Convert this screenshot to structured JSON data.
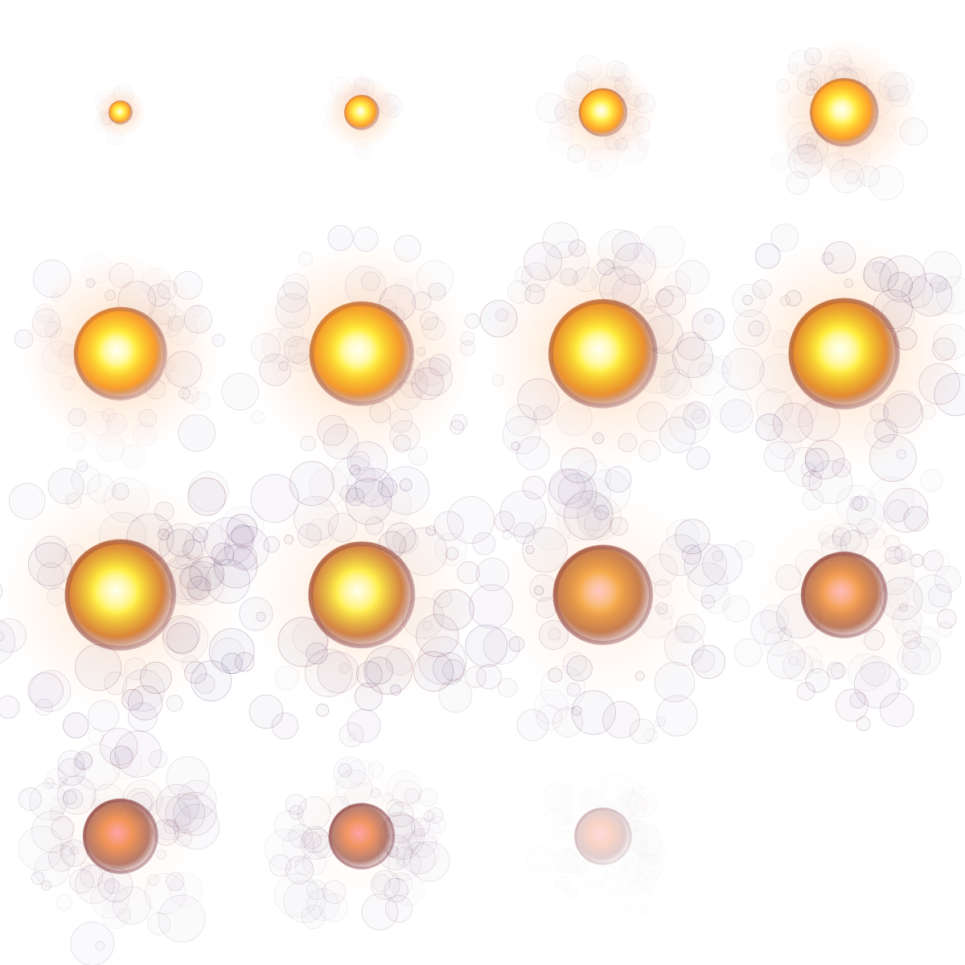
{
  "sprite_sheet": {
    "background_color": "#ffffff",
    "columns": 4,
    "rows": 4,
    "frames": [
      {
        "index": 1,
        "fire": 0.1,
        "heat": 1.0,
        "smoke": 0.05,
        "fade": 1.0
      },
      {
        "index": 2,
        "fire": 0.2,
        "heat": 1.0,
        "smoke": 0.2,
        "fade": 1.0
      },
      {
        "index": 3,
        "fire": 0.32,
        "heat": 1.0,
        "smoke": 0.35,
        "fade": 1.0
      },
      {
        "index": 4,
        "fire": 0.5,
        "heat": 1.0,
        "smoke": 0.5,
        "fade": 1.0
      },
      {
        "index": 5,
        "fire": 0.72,
        "heat": 0.95,
        "smoke": 0.6,
        "fade": 1.0
      },
      {
        "index": 6,
        "fire": 0.82,
        "heat": 0.92,
        "smoke": 0.7,
        "fade": 1.0
      },
      {
        "index": 7,
        "fire": 0.86,
        "heat": 0.85,
        "smoke": 0.8,
        "fade": 1.0
      },
      {
        "index": 8,
        "fire": 0.88,
        "heat": 0.8,
        "smoke": 0.9,
        "fade": 1.0
      },
      {
        "index": 9,
        "fire": 0.88,
        "heat": 0.7,
        "smoke": 1.0,
        "fade": 0.95
      },
      {
        "index": 10,
        "fire": 0.84,
        "heat": 0.62,
        "smoke": 1.0,
        "fade": 0.9
      },
      {
        "index": 11,
        "fire": 0.78,
        "heat": 0.5,
        "smoke": 1.0,
        "fade": 0.85
      },
      {
        "index": 12,
        "fire": 0.66,
        "heat": 0.38,
        "smoke": 0.95,
        "fade": 0.8
      },
      {
        "index": 13,
        "fire": 0.56,
        "heat": 0.28,
        "smoke": 0.9,
        "fade": 0.75
      },
      {
        "index": 14,
        "fire": 0.48,
        "heat": 0.22,
        "smoke": 0.85,
        "fade": 0.7
      },
      {
        "index": 15,
        "fire": 0.4,
        "heat": 0.1,
        "smoke": 0.5,
        "fade": 0.25
      },
      {
        "index": 16,
        "fire": 0.0,
        "heat": 0.0,
        "smoke": 0.0,
        "fade": 0.0
      }
    ],
    "palette": {
      "core_white": "#fffff0",
      "core_yellow": "#ffee33",
      "fire_orange": "#ff9a1a",
      "fire_red": "#e8451e",
      "hot_pink": "#ff5a6e",
      "ember_dark": "#6e1c2a",
      "smoke_purple": "#4a2a6a",
      "glow_orange": "#ffb070"
    }
  }
}
